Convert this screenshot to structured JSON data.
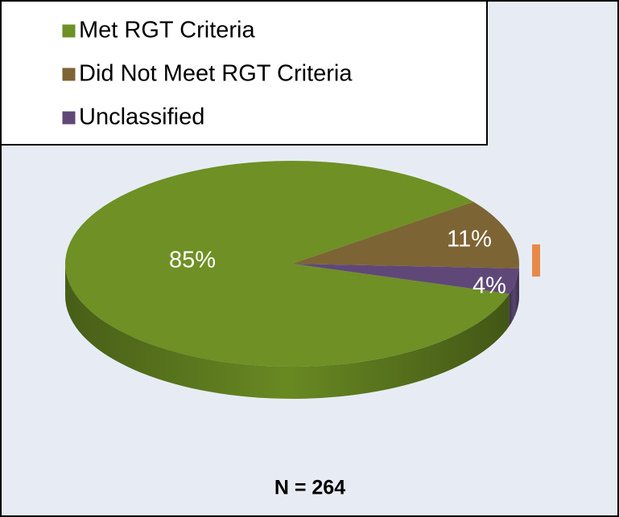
{
  "chart_data": {
    "type": "pie",
    "categories": [
      "Met RGT Criteria",
      "Did Not Meet RGT Criteria",
      "Unclassified"
    ],
    "values": [
      85,
      11,
      4
    ],
    "value_labels": [
      "85%",
      "11%",
      "4%"
    ],
    "colors": [
      "#6e9024",
      "#7d6434",
      "#5f4878"
    ],
    "annotation": "N = 264",
    "legend": "top-left"
  }
}
